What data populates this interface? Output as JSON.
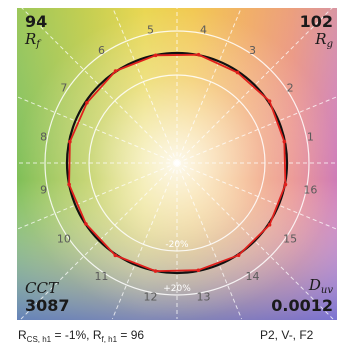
{
  "chart_data": {
    "type": "color-vector-graphic",
    "hue_bin_labels": [
      "1",
      "2",
      "3",
      "4",
      "5",
      "6",
      "7",
      "8",
      "9",
      "10",
      "11",
      "12",
      "13",
      "14",
      "15",
      "16"
    ],
    "ring_labels": [
      "-20%",
      "+20%"
    ],
    "reference_radius": 1.0,
    "test_source_radii": [
      0.995,
      1.012,
      0.99,
      1.004,
      0.998,
      1.006,
      0.985,
      0.993,
      1.0,
      0.996,
      1.01,
      1.002,
      0.994,
      1.008,
      1.012,
      1.005
    ],
    "metrics": {
      "rf": {
        "value": "94",
        "label": "R",
        "sub": "f"
      },
      "rg": {
        "value": "102",
        "label": "R",
        "sub": "g"
      },
      "cct": {
        "value": "3087",
        "label": "CCT"
      },
      "duv": {
        "value": "0.0012",
        "label": "D",
        "sub": "uv"
      }
    },
    "colors": {
      "reference": "#111111",
      "test": "#e0201c"
    }
  },
  "footer": {
    "rcs_label": "R",
    "rcs_sub": "CS, h1",
    "rcs_value": " = -1%, ",
    "rf_label": "R",
    "rf_sub": "f, h1",
    "rf_value": " = 96",
    "classification": "P2, V-, F2"
  }
}
